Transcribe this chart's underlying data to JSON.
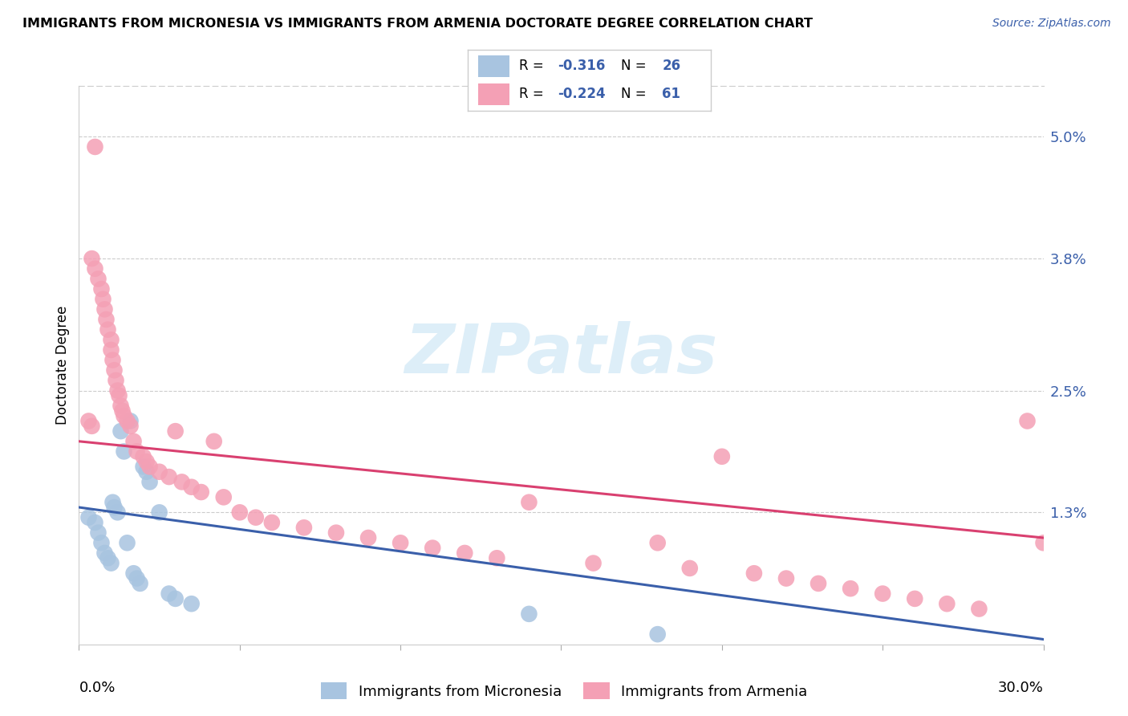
{
  "title": "IMMIGRANTS FROM MICRONESIA VS IMMIGRANTS FROM ARMENIA DOCTORATE DEGREE CORRELATION CHART",
  "source": "Source: ZipAtlas.com",
  "ylabel": "Doctorate Degree",
  "ytick_values": [
    1.3,
    2.5,
    3.8,
    5.0
  ],
  "ytick_labels": [
    "1.3%",
    "2.5%",
    "3.8%",
    "5.0%"
  ],
  "xlim": [
    0.0,
    30.0
  ],
  "ylim": [
    0.0,
    5.5
  ],
  "legend_blue_r": "-0.316",
  "legend_blue_n": "26",
  "legend_pink_r": "-0.224",
  "legend_pink_n": "61",
  "blue_label": "Immigrants from Micronesia",
  "pink_label": "Immigrants from Armenia",
  "blue_scatter_color": "#a8c4e0",
  "pink_scatter_color": "#f4a0b5",
  "blue_line_color": "#3a5faa",
  "pink_line_color": "#d94070",
  "watermark_color": "#ddeef8",
  "micronesia_x": [
    0.3,
    0.5,
    0.6,
    0.7,
    0.8,
    0.9,
    1.0,
    1.05,
    1.1,
    1.2,
    1.3,
    1.4,
    1.5,
    1.6,
    1.7,
    1.8,
    1.9,
    2.0,
    2.1,
    2.2,
    2.5,
    2.8,
    3.0,
    3.5,
    14.0,
    18.0
  ],
  "micronesia_y": [
    1.25,
    1.2,
    1.1,
    1.0,
    0.9,
    0.85,
    0.8,
    1.4,
    1.35,
    1.3,
    2.1,
    1.9,
    1.0,
    2.2,
    0.7,
    0.65,
    0.6,
    1.75,
    1.7,
    1.6,
    1.3,
    0.5,
    0.45,
    0.4,
    0.3,
    0.1
  ],
  "armenia_x": [
    0.3,
    0.4,
    0.4,
    0.5,
    0.5,
    0.6,
    0.7,
    0.75,
    0.8,
    0.85,
    0.9,
    1.0,
    1.0,
    1.05,
    1.1,
    1.15,
    1.2,
    1.25,
    1.3,
    1.35,
    1.4,
    1.5,
    1.6,
    1.7,
    1.8,
    2.0,
    2.1,
    2.2,
    2.5,
    2.8,
    3.0,
    3.2,
    3.5,
    3.8,
    4.2,
    4.5,
    5.0,
    5.5,
    6.0,
    7.0,
    8.0,
    9.0,
    10.0,
    11.0,
    12.0,
    13.0,
    14.0,
    16.0,
    18.0,
    19.0,
    20.0,
    21.0,
    22.0,
    23.0,
    24.0,
    25.0,
    26.0,
    27.0,
    28.0,
    29.5,
    30.0
  ],
  "armenia_y": [
    2.2,
    2.15,
    3.8,
    4.9,
    3.7,
    3.6,
    3.5,
    3.4,
    3.3,
    3.2,
    3.1,
    3.0,
    2.9,
    2.8,
    2.7,
    2.6,
    2.5,
    2.45,
    2.35,
    2.3,
    2.25,
    2.2,
    2.15,
    2.0,
    1.9,
    1.85,
    1.8,
    1.75,
    1.7,
    1.65,
    2.1,
    1.6,
    1.55,
    1.5,
    2.0,
    1.45,
    1.3,
    1.25,
    1.2,
    1.15,
    1.1,
    1.05,
    1.0,
    0.95,
    0.9,
    0.85,
    1.4,
    0.8,
    1.0,
    0.75,
    1.85,
    0.7,
    0.65,
    0.6,
    0.55,
    0.5,
    0.45,
    0.4,
    0.35,
    2.2,
    1.0
  ]
}
